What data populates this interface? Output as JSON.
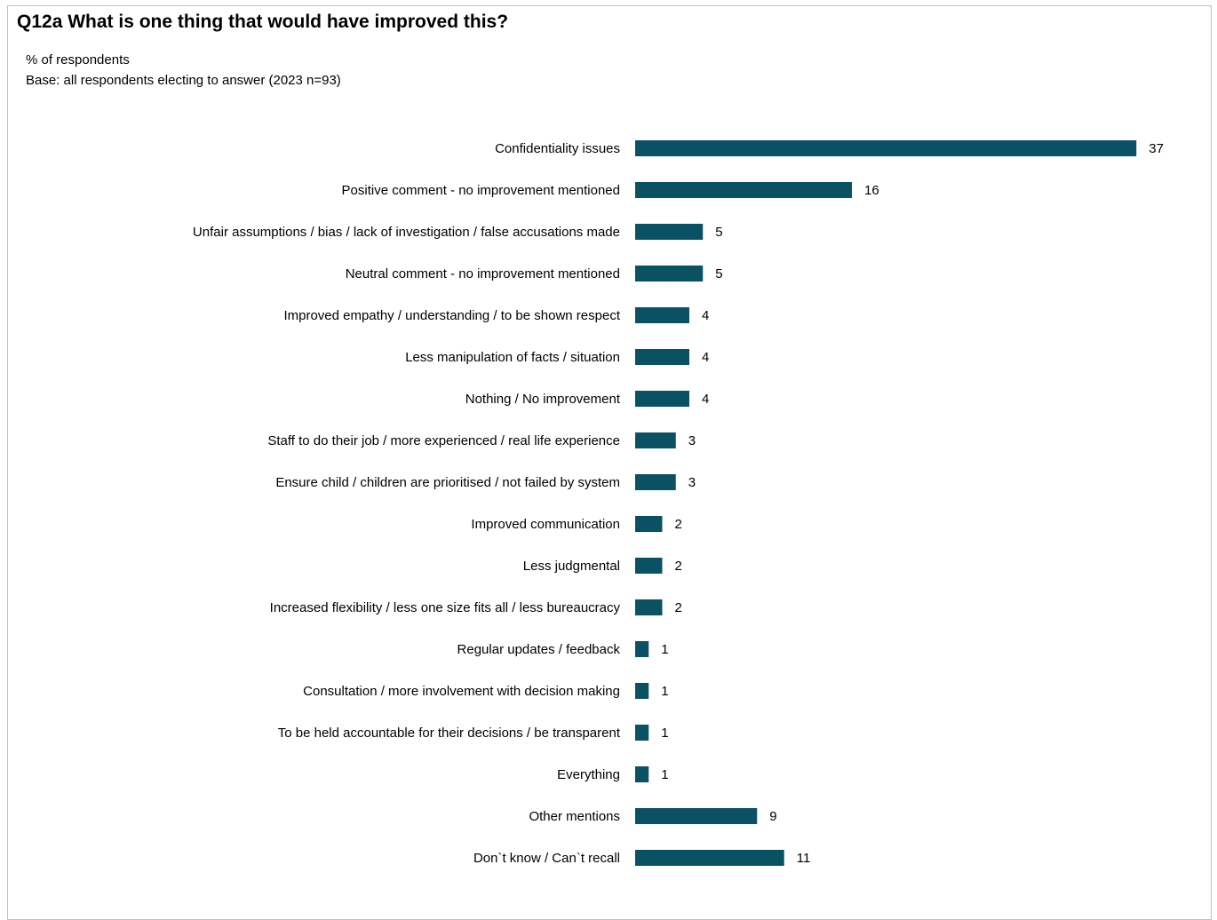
{
  "title": "Q12a What is one thing that would have improved this?",
  "subtitle_lines": [
    "% of respondents",
    "Base: all respondents electing to answer (2023 n=93)"
  ],
  "colors": {
    "bar": "#0b5164",
    "frame": "#bfbfbf"
  },
  "chart_data": {
    "type": "bar",
    "orientation": "horizontal",
    "title": "Q12a What is one thing that would have improved this?",
    "ylabel": "% of respondents",
    "grid": false,
    "legend": "none",
    "xlim": [
      0,
      40
    ],
    "categories": [
      "Confidentiality issues",
      "Positive comment - no improvement mentioned",
      "Unfair assumptions / bias / lack of investigation / false accusations made",
      "Neutral comment - no improvement mentioned",
      "Improved empathy / understanding / to be shown respect",
      "Less manipulation of facts / situation",
      "Nothing / No improvement",
      "Staff to do their job / more experienced / real life experience",
      "Ensure child / children are prioritised / not failed by system",
      "Improved communication",
      "Less judgmental",
      "Increased flexibility / less one size fits all / less bureaucracy",
      "Regular updates / feedback",
      "Consultation / more involvement with decision making",
      "To be held accountable for their decisions / be transparent",
      "Everything",
      "Other mentions",
      "Don`t know / Can`t recall"
    ],
    "values": [
      37,
      16,
      5,
      5,
      4,
      4,
      4,
      3,
      3,
      2,
      2,
      2,
      1,
      1,
      1,
      1,
      9,
      11
    ]
  }
}
